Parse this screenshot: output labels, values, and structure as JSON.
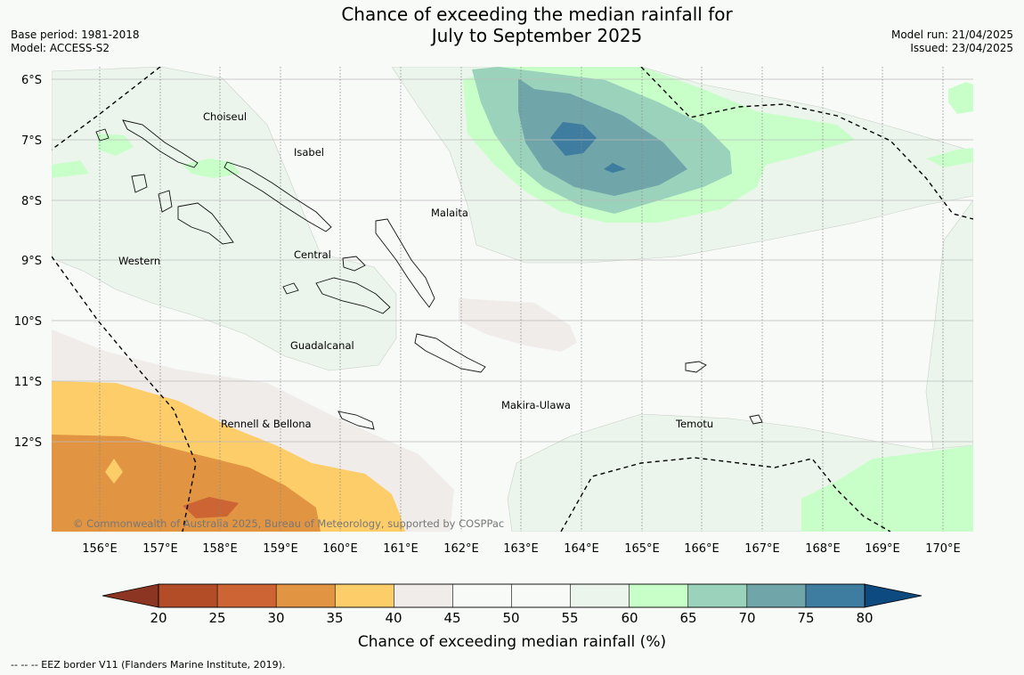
{
  "title": {
    "line1": "Chance of exceeding the median rainfall for",
    "line2": "July to September 2025"
  },
  "meta": {
    "base_period": "Base period: 1981-2018",
    "model": "Model: ACCESS-S2",
    "model_run": "Model run: 21/04/2025",
    "issued": "Issued: 23/04/2025"
  },
  "map": {
    "lat_labels": [
      "6°S",
      "7°S",
      "8°S",
      "9°S",
      "10°S",
      "11°S",
      "12°S"
    ],
    "lon_labels": [
      "156°E",
      "157°E",
      "158°E",
      "159°E",
      "160°E",
      "161°E",
      "162°E",
      "163°E",
      "164°E",
      "165°E",
      "166°E",
      "167°E",
      "168°E",
      "169°E",
      "170°E"
    ],
    "provinces": [
      "Choiseul",
      "Isabel",
      "Malaita",
      "Western",
      "Central",
      "Guadalcanal",
      "Makira-Ulawa",
      "Rennell & Bellona",
      "Temotu"
    ],
    "credit": "© Commonwealth of Australia 2025, Bureau of Meteorology, supported by COSPPac"
  },
  "colorbar": {
    "ticks": [
      "20",
      "25",
      "30",
      "35",
      "40",
      "45",
      "50",
      "55",
      "60",
      "65",
      "70",
      "75",
      "80"
    ],
    "colors": [
      "#b34d28",
      "#cc6433",
      "#e19442",
      "#fdcd6a",
      "#efecea",
      "#f8faf8",
      "#f8faf8",
      "#ebf5eb",
      "#c8ffc8",
      "#9ad2bc",
      "#70a5a9",
      "#3e7ca0"
    ],
    "under_color": "#8c3522",
    "over_color": "#0d4a80",
    "label": "Chance of exceeding median rainfall (%)"
  },
  "footer": "--  --  -- EEZ border V11 (Flanders Marine Institute, 2019)."
}
